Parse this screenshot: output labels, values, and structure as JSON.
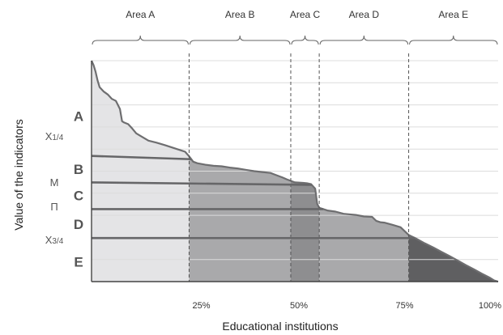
{
  "chart_data": {
    "type": "area",
    "title": "",
    "xlabel": "Educational institutions",
    "ylabel": "Value of the indicators",
    "x_unit": "% of institutions",
    "xlim": [
      0,
      100
    ],
    "ylim": [
      0,
      100
    ],
    "grid": "horizontal",
    "x_ticks": [
      {
        "value": 27,
        "label": "25%"
      },
      {
        "value": 51,
        "label": "50%"
      },
      {
        "value": 77,
        "label": "75%"
      },
      {
        "value": 98,
        "label": "100%"
      }
    ],
    "areas": [
      {
        "name": "Area A",
        "from": 0,
        "to": 24,
        "color": "#e4e4e6"
      },
      {
        "name": "Area B",
        "from": 24,
        "to": 49,
        "color": "#a9a9ab"
      },
      {
        "name": "Area C",
        "from": 49,
        "to": 56,
        "color": "#8e8e90"
      },
      {
        "name": "Area D",
        "from": 56,
        "to": 78,
        "color": "#a9a9ab"
      },
      {
        "name": "Area E",
        "from": 78,
        "to": 100,
        "color": "#5f5f61"
      }
    ],
    "band_letters": [
      "A",
      "B",
      "C",
      "D",
      "E"
    ],
    "band_letter_levels": [
      75,
      51,
      39,
      26,
      9
    ],
    "stat_labels": [
      {
        "text": "X1/4",
        "level": 66
      },
      {
        "text": "M",
        "level": 45
      },
      {
        "text": "П",
        "level": 34
      },
      {
        "text": "X3/4",
        "level": 19
      }
    ],
    "stat_lines": [
      {
        "name": "X1/4",
        "y_start": 56.9,
        "y_end": 55.4
      },
      {
        "name": "M",
        "y_start": 44.9,
        "y_end": 43.8
      },
      {
        "name": "П",
        "y_start": 32.8,
        "y_end": 32.8
      },
      {
        "name": "X3/4",
        "y_start": 19.7,
        "y_end": 19.7
      }
    ],
    "divider_x": [
      24,
      49,
      56,
      78
    ],
    "series": [
      {
        "x": [
          0,
          0.5,
          1,
          1.5,
          2,
          3,
          4,
          5,
          6,
          7,
          7.5,
          8,
          9,
          10,
          11,
          12,
          14,
          16,
          18,
          20,
          22,
          23,
          24,
          25,
          26,
          28,
          30,
          32,
          34,
          36,
          38,
          40,
          42,
          44,
          45,
          46,
          47,
          48,
          49,
          50,
          52,
          53,
          54,
          55,
          55.5,
          56,
          58,
          60,
          62,
          63,
          65,
          67,
          69,
          70,
          71,
          72,
          74,
          76,
          78,
          80,
          82,
          84,
          86,
          88,
          90,
          92,
          94,
          96,
          98,
          99,
          100
        ],
        "y": [
          100,
          98,
          95,
          91,
          88,
          86,
          84.7,
          82.7,
          81.8,
          78.1,
          72.6,
          72.0,
          71.3,
          69.3,
          67.1,
          66.0,
          63.8,
          62.9,
          61.8,
          60.6,
          59.4,
          58.8,
          56.7,
          54.3,
          53.6,
          52.9,
          52.4,
          52.2,
          51.6,
          51.2,
          50.6,
          50.0,
          49.6,
          49.2,
          48.5,
          47.8,
          47.1,
          46.3,
          45.6,
          44.9,
          44.7,
          44.5,
          44.1,
          42.1,
          35.2,
          33.4,
          32.2,
          31.7,
          30.7,
          30.5,
          30.2,
          29.5,
          29.3,
          27.5,
          26.9,
          26.7,
          25.7,
          24.6,
          21.1,
          19.3,
          17.3,
          15.5,
          13.5,
          11.6,
          9.6,
          7.5,
          5.6,
          3.6,
          1.7,
          0.5,
          0
        ]
      }
    ]
  }
}
